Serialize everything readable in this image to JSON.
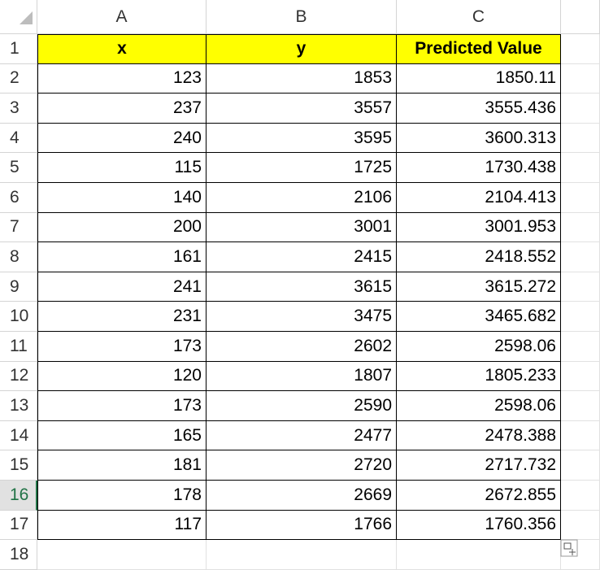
{
  "columns": [
    "A",
    "B",
    "C"
  ],
  "row_numbers": [
    1,
    2,
    3,
    4,
    5,
    6,
    7,
    8,
    9,
    10,
    11,
    12,
    13,
    14,
    15,
    16,
    17,
    18
  ],
  "table": {
    "header": [
      "x",
      "y",
      "Predicted Value"
    ],
    "rows": [
      [
        123,
        1853,
        1850.11
      ],
      [
        237,
        3557,
        3555.436
      ],
      [
        240,
        3595,
        3600.313
      ],
      [
        115,
        1725,
        1730.438
      ],
      [
        140,
        2106,
        2104.413
      ],
      [
        200,
        3001,
        3001.953
      ],
      [
        161,
        2415,
        2418.552
      ],
      [
        241,
        3615,
        3615.272
      ],
      [
        231,
        3475,
        3465.682
      ],
      [
        173,
        2602,
        2598.06
      ],
      [
        120,
        1807,
        1805.233
      ],
      [
        173,
        2590,
        2598.06
      ],
      [
        165,
        2477,
        2478.388
      ],
      [
        181,
        2720,
        2717.732
      ],
      [
        178,
        2669,
        2672.855
      ],
      [
        117,
        1766,
        1760.356
      ]
    ]
  }
}
